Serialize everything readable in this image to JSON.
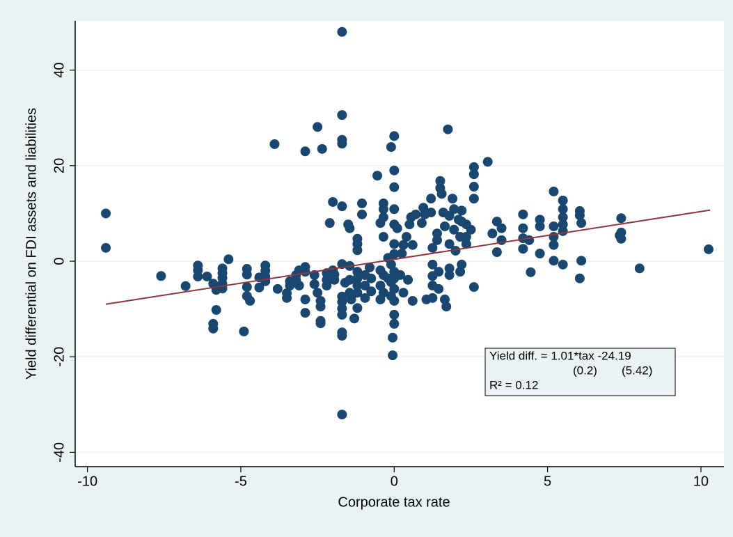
{
  "chart_data": {
    "type": "scatter",
    "x_label": "Corporate tax rate",
    "y_label": "Yield differential on FDI assets and liabilities",
    "xlim": [
      -10.4,
      10.75
    ],
    "ylim": [
      -43,
      50.3
    ],
    "xticks": [
      -10,
      -5,
      0,
      5,
      10
    ],
    "yticks": [
      40,
      20,
      0,
      -20,
      -40
    ],
    "grid": true,
    "color": "#1a476f",
    "x": [
      -9.4,
      -9.4,
      -7.6,
      -6.8,
      -6.4,
      -6.4,
      -6.4,
      -6.1,
      -5.9,
      -5.9,
      -5.9,
      -5.8,
      -5.8,
      -5.6,
      -5.6,
      -5.6,
      -5.6,
      -5.6,
      -5.4,
      -4.9,
      -4.8,
      -4.8,
      -4.8,
      -4.8,
      -4.7,
      -4.4,
      -4.4,
      -4.2,
      -4.2,
      -4.2,
      -4.2,
      -3.9,
      -3.8,
      -3.5,
      -3.5,
      -3.4,
      -3.4,
      -3.2,
      -3.2,
      -3.1,
      -3.1,
      -2.9,
      -2.9,
      -2.9,
      -2.9,
      -2.9,
      -2.6,
      -2.6,
      -2.5,
      -2.5,
      -2.4,
      -2.4,
      -2.4,
      -2.4,
      -2.35,
      -2.2,
      -2.2,
      -2.2,
      -2.0,
      -2.1,
      -2.0,
      -1.95,
      -1.95,
      -1.7,
      -1.7,
      -1.7,
      -1.7,
      -1.7,
      -1.7,
      -1.7,
      -1.7,
      -1.7,
      -1.7,
      -1.7,
      -1.7,
      -1.7,
      -1.6,
      -1.5,
      -1.45,
      -1.45,
      -1.45,
      -1.45,
      -1.4,
      -1.3,
      -1.2,
      -1.2,
      -1.2,
      -1.2,
      -1.2,
      -1.2,
      -1.2,
      -1.2,
      -1.05,
      -1.05,
      -0.95,
      -0.95,
      -0.95,
      -0.8,
      -0.75,
      -0.75,
      -0.55,
      -0.45,
      -0.45,
      -0.45,
      -0.45,
      -0.35,
      -0.35,
      -0.35,
      -0.35,
      -0.35,
      -0.35,
      -0.2,
      -0.2,
      -0.1,
      -0.1,
      -0.1,
      -0.1,
      -0.05,
      -0.05,
      0,
      0,
      0,
      0,
      0,
      0,
      0,
      0,
      0,
      0,
      0,
      0,
      0,
      0.1,
      0.2,
      0.25,
      0.3,
      0.3,
      0.4,
      0.45,
      0.5,
      0.55,
      0.6,
      0.6,
      0.7,
      0.9,
      0.95,
      1.0,
      1.05,
      1.2,
      1.2,
      1.25,
      1.25,
      1.25,
      1.25,
      1.25,
      1.4,
      1.4,
      1.45,
      1.45,
      1.5,
      1.5,
      1.55,
      1.6,
      1.65,
      1.65,
      1.7,
      1.75,
      1.8,
      1.8,
      1.8,
      1.8,
      1.9,
      1.95,
      1.95,
      2.0,
      2.1,
      2.15,
      2.15,
      2.2,
      2.2,
      2.2,
      2.35,
      2.35,
      2.35,
      2.5,
      2.6,
      2.6,
      2.6,
      2.6,
      2.6,
      3.05,
      3.2,
      3.35,
      3.35,
      3.5,
      3.5,
      4.2,
      4.2,
      4.2,
      4.2,
      4.4,
      4.45,
      4.75,
      4.75,
      4.75,
      5.2,
      5.2,
      5.2,
      5.2,
      5.2,
      5.5,
      5.5,
      5.5,
      5.5,
      5.5,
      5.5,
      6.05,
      6.05,
      6.05,
      6.1,
      6.1,
      7.35,
      7.4,
      7.4,
      7.4,
      8.0,
      10.25
    ],
    "values": [
      10.0,
      2.8,
      -3.1,
      -5.2,
      -0.9,
      -1.9,
      -3.2,
      -3.2,
      -4.7,
      -13.1,
      -14.1,
      -10.2,
      -6.0,
      -1.5,
      -2.5,
      -3.5,
      -4.7,
      -5.7,
      0.4,
      -14.7,
      -1.6,
      -2.8,
      -5.4,
      -7.3,
      -8.3,
      -3.4,
      -5.5,
      -0.9,
      -2.0,
      -3.2,
      -4.2,
      24.5,
      -5.8,
      -6.7,
      -7.7,
      -4.2,
      -5.1,
      -2.9,
      -3.9,
      -1.9,
      -5.1,
      23.0,
      -10.8,
      -8.0,
      -2.2,
      -1.2,
      -2.9,
      -4.8,
      28.1,
      -6.6,
      -8.3,
      -9.5,
      -12.5,
      -13.0,
      23.5,
      -2.5,
      -3.9,
      -5.1,
      -1.9,
      8.0,
      12.4,
      -2.8,
      -3.9,
      48.0,
      30.6,
      25.4,
      24.6,
      11.5,
      -0.6,
      -7.4,
      -8.5,
      -9.9,
      -11.2,
      -14.9,
      -15.6,
      -32.1,
      -4.5,
      7.7,
      6.9,
      -1.0,
      -3.9,
      -6.6,
      -8.0,
      -12.0,
      4.7,
      3.6,
      2.3,
      -2.2,
      -3.6,
      -5.1,
      -6.6,
      -9.8,
      12.1,
      9.8,
      -2.9,
      -5.1,
      -7.7,
      -1.3,
      -3.6,
      -6.3,
      17.9,
      8.0,
      -1.9,
      -5.1,
      -8.0,
      12.1,
      10.9,
      9.2,
      5.1,
      -2.9,
      -6.6,
      0.7,
      -3.6,
      23.9,
      -0.7,
      -4.4,
      -7.3,
      -16.0,
      -19.7,
      26.2,
      19.0,
      15.5,
      10.9,
      7.7,
      3.6,
      1.5,
      -2.2,
      -3.6,
      -5.8,
      -8.3,
      -11.2,
      -13.1,
      6.9,
      -2.9,
      1.6,
      -6.6,
      3.4,
      5.1,
      -3.9,
      7.7,
      9.2,
      3.4,
      -8.3,
      9.8,
      8.0,
      11.2,
      9.8,
      -8.0,
      10.2,
      13.1,
      2.8,
      -0.7,
      -3.1,
      -5.1,
      -7.7,
      5.8,
      4.4,
      -2.2,
      -5.8,
      16.8,
      15.3,
      14.1,
      10.2,
      7.3,
      -8.0,
      -9.5,
      27.6,
      9.5,
      3.6,
      -1.5,
      -2.9,
      13.1,
      10.9,
      6.6,
      2.2,
      8.7,
      5.1,
      -2.2,
      10.6,
      8.3,
      -0.7,
      7.7,
      5.1,
      3.6,
      6.6,
      19.7,
      18.2,
      15.6,
      13.1,
      -5.4,
      20.8,
      5.8,
      1.9,
      8.3,
      6.9,
      4.4,
      9.8,
      6.9,
      4.8,
      2.6,
      4.4,
      -2.3,
      8.7,
      7.3,
      1.6,
      14.6,
      7.3,
      5.1,
      3.4,
      0.1,
      12.7,
      10.9,
      9.2,
      7.7,
      6.3,
      -0.7,
      10.5,
      9.6,
      -3.6,
      8.0,
      0.1,
      5.4,
      9.0,
      6.0,
      4.7,
      -1.5,
      2.5
    ],
    "fit_line": {
      "x": [
        -9.4,
        10.3
      ],
      "values": [
        -9.0,
        10.7
      ],
      "color": "#90353b"
    },
    "annotation": {
      "equation": "Yield diff. = 1.01*tax -24.19",
      "se_slope": "(0.2)",
      "se_intercept": "(5.42)",
      "r2": "R² = 0.12"
    }
  }
}
